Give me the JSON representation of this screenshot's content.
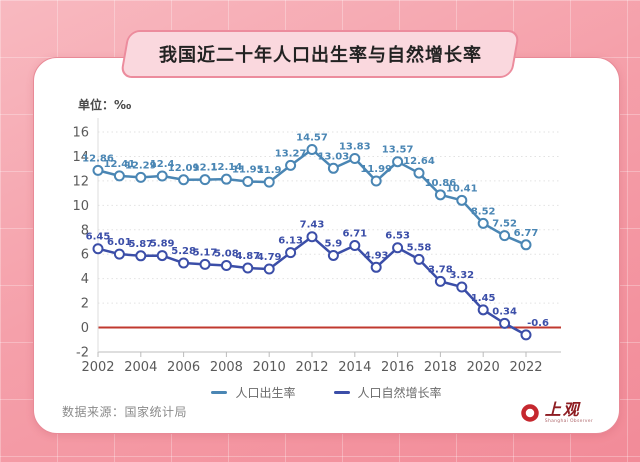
{
  "title": "我国近二十年人口出生率与自然增长率",
  "unit_label": "单位：‰",
  "source": "数据来源：国家统计局",
  "logo": {
    "name": "上观",
    "subtitle": "Shanghai Observer"
  },
  "colors": {
    "birth_line": "#4a86b4",
    "growth_line": "#3b4ea8",
    "zero_line": "#c0392f",
    "grid_line": "#e2e2e2",
    "axis_line": "#c9c9c9",
    "tick_text": "#5a5a5a",
    "logo_red": "#c5282f"
  },
  "chart_data": {
    "type": "line",
    "title": "我国近二十年人口出生率与自然增长率",
    "xlabel": "",
    "ylabel": "单位：‰",
    "x": [
      2002,
      2003,
      2004,
      2005,
      2006,
      2007,
      2008,
      2009,
      2010,
      2011,
      2012,
      2013,
      2014,
      2015,
      2016,
      2017,
      2018,
      2019,
      2020,
      2021,
      2022
    ],
    "x_tick_labels": [
      "2002",
      "2004",
      "2006",
      "2008",
      "2010",
      "2012",
      "2014",
      "2016",
      "2018",
      "2020",
      "2022"
    ],
    "ylim": [
      -2,
      16
    ],
    "y_ticks": [
      -2,
      0,
      2,
      4,
      6,
      8,
      10,
      12,
      14,
      16
    ],
    "grid": true,
    "zero_line": true,
    "legend_position": "bottom",
    "series": [
      {
        "name": "人口出生率",
        "color": "#4a86b4",
        "values": [
          12.86,
          12.41,
          12.29,
          12.4,
          12.09,
          12.1,
          12.14,
          11.95,
          11.9,
          13.27,
          14.57,
          13.03,
          13.83,
          11.99,
          13.57,
          12.64,
          10.86,
          10.41,
          8.52,
          7.52,
          6.77
        ]
      },
      {
        "name": "人口自然增长率",
        "color": "#3b4ea8",
        "values": [
          6.45,
          6.01,
          5.87,
          5.89,
          5.28,
          5.17,
          5.08,
          4.87,
          4.79,
          6.13,
          7.43,
          5.9,
          6.71,
          4.93,
          6.53,
          5.58,
          3.78,
          3.32,
          1.45,
          0.34,
          -0.6
        ]
      }
    ]
  }
}
